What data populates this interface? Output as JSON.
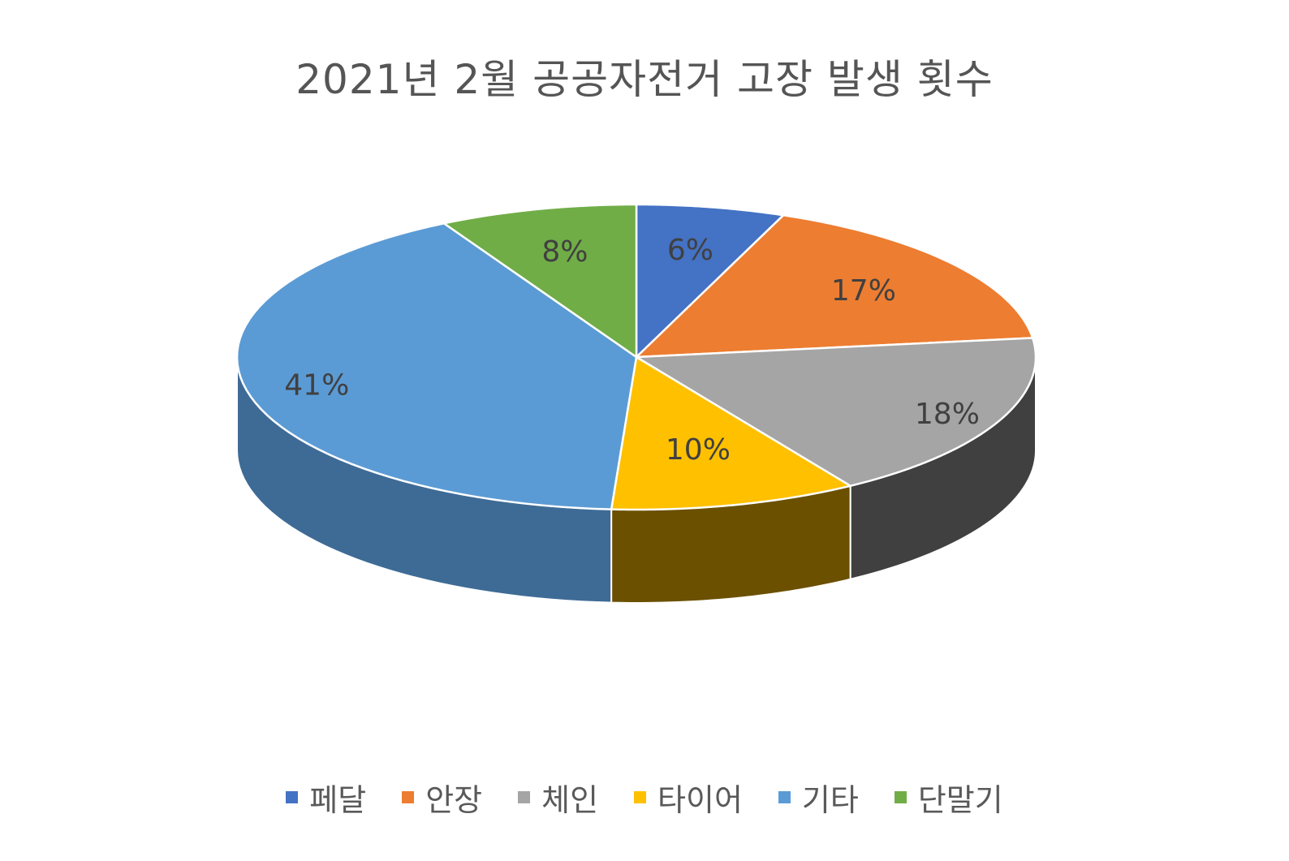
{
  "chart_data": {
    "type": "pie",
    "style": "3d",
    "title": "2021년 2월 공공자전거 고장 발생 횟수",
    "categories": [
      "페달",
      "안장",
      "체인",
      "타이어",
      "기타",
      "단말기"
    ],
    "values": [
      6,
      17,
      18,
      10,
      41,
      8
    ],
    "labels": [
      "6%",
      "17%",
      "18%",
      "10%",
      "41%",
      "8%"
    ],
    "colors": [
      "#4472C4",
      "#ED7D31",
      "#A5A5A5",
      "#FFC000",
      "#5B9BD5",
      "#70AD47"
    ],
    "side_colors": [
      "#2F5090",
      "#A85A24",
      "#404040",
      "#6B5000",
      "#3E6B96",
      "#4A7A2F"
    ],
    "legend_position": "bottom"
  }
}
